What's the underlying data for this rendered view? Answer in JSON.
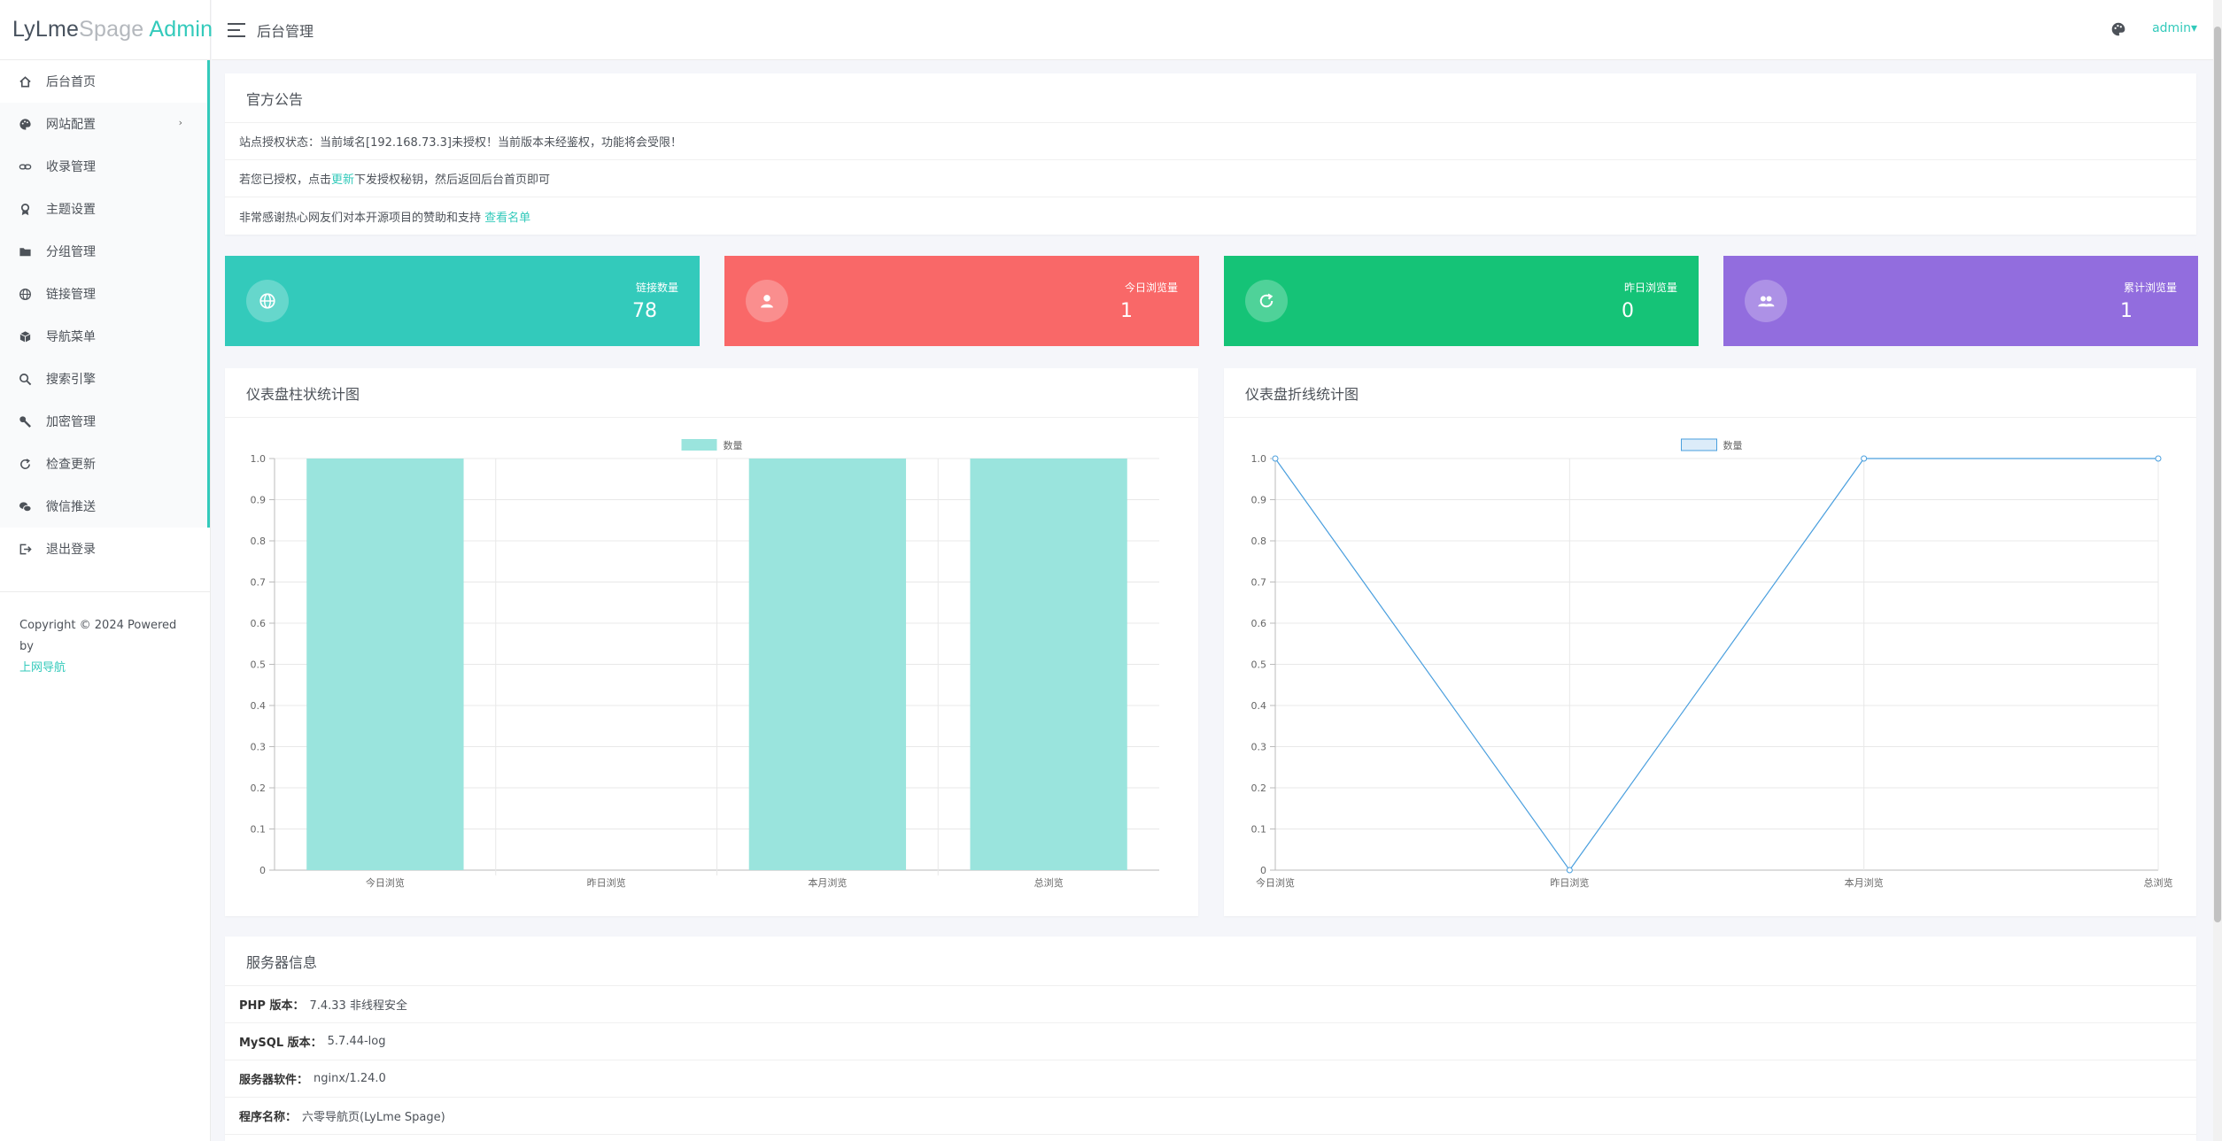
{
  "logo": {
    "part1": "LyLme",
    "part2": "Spage",
    "part3": "Admin"
  },
  "sidebar": {
    "items": [
      {
        "label": "后台首页",
        "icon": "home-icon"
      },
      {
        "label": "网站配置",
        "icon": "palette-icon",
        "arrow": "›"
      },
      {
        "label": "收录管理",
        "icon": "link-icon"
      },
      {
        "label": "主题设置",
        "icon": "award-icon"
      },
      {
        "label": "分组管理",
        "icon": "folder-icon"
      },
      {
        "label": "链接管理",
        "icon": "globe-icon"
      },
      {
        "label": "导航菜单",
        "icon": "box-icon"
      },
      {
        "label": "搜索引擎",
        "icon": "search-icon"
      },
      {
        "label": "加密管理",
        "icon": "wrench-icon"
      },
      {
        "label": "检查更新",
        "icon": "refresh-icon"
      },
      {
        "label": "微信推送",
        "icon": "wechat-icon"
      },
      {
        "label": "退出登录",
        "icon": "logout-icon"
      }
    ],
    "copyright": "Copyright © 2024 Powered by",
    "copyright_link": "上网导航"
  },
  "header": {
    "title": "后台管理",
    "user": "admin",
    "caret": "▾"
  },
  "notice": {
    "title": "官方公告",
    "line1": "站点授权状态：当前域名[192.168.73.3]未授权！当前版本未经鉴权，功能将会受限！",
    "line2_pre": "若您已授权，点击",
    "line2_link": "更新",
    "line2_post": "下发授权秘钥，然后返回后台首页即可",
    "line3_pre": "非常感谢热心网友们对本开源项目的赞助和支持 ",
    "line3_link": "查看名单"
  },
  "stats": [
    {
      "label": "链接数量",
      "value": "78",
      "color": "#33cabb",
      "icon": "globe-icon"
    },
    {
      "label": "今日浏览量",
      "value": "1",
      "color": "#f96868",
      "icon": "user-icon"
    },
    {
      "label": "昨日浏览量",
      "value": "0",
      "color": "#15c377",
      "icon": "refresh-icon"
    },
    {
      "label": "累计浏览量",
      "value": "1",
      "color": "#926dde",
      "icon": "users-icon"
    }
  ],
  "bar_panel_title": "仪表盘柱状统计图",
  "line_panel_title": "仪表盘折线统计图",
  "chart_data": [
    {
      "type": "bar",
      "categories": [
        "今日浏览",
        "昨日浏览",
        "本月浏览",
        "总浏览"
      ],
      "series": [
        {
          "name": "数量",
          "values": [
            1,
            0,
            1,
            1
          ],
          "color": "#9ae4dd"
        }
      ],
      "ylim": [
        0,
        1
      ],
      "yticks": [
        "0",
        "0.1",
        "0.2",
        "0.3",
        "0.4",
        "0.5",
        "0.6",
        "0.7",
        "0.8",
        "0.9",
        "1.0"
      ],
      "legend": "top-center",
      "grid": true
    },
    {
      "type": "line",
      "categories": [
        "今日浏览",
        "昨日浏览",
        "本月浏览",
        "总浏览"
      ],
      "series": [
        {
          "name": "数量",
          "values": [
            1,
            0,
            1,
            1
          ],
          "color": "#4a9fde"
        }
      ],
      "ylim": [
        0,
        1
      ],
      "yticks": [
        "0",
        "0.1",
        "0.2",
        "0.3",
        "0.4",
        "0.5",
        "0.6",
        "0.7",
        "0.8",
        "0.9",
        "1.0"
      ],
      "legend": "top-center",
      "grid": true
    }
  ],
  "server": {
    "title": "服务器信息",
    "rows": [
      {
        "key": "PHP 版本：",
        "value": "7.4.33 非线程安全"
      },
      {
        "key": "MySQL 版本：",
        "value": "5.7.44-log"
      },
      {
        "key": "服务器软件：",
        "value": "nginx/1.24.0"
      },
      {
        "key": "程序名称：",
        "value": "六零导航页(LyLme Spage)"
      }
    ]
  }
}
